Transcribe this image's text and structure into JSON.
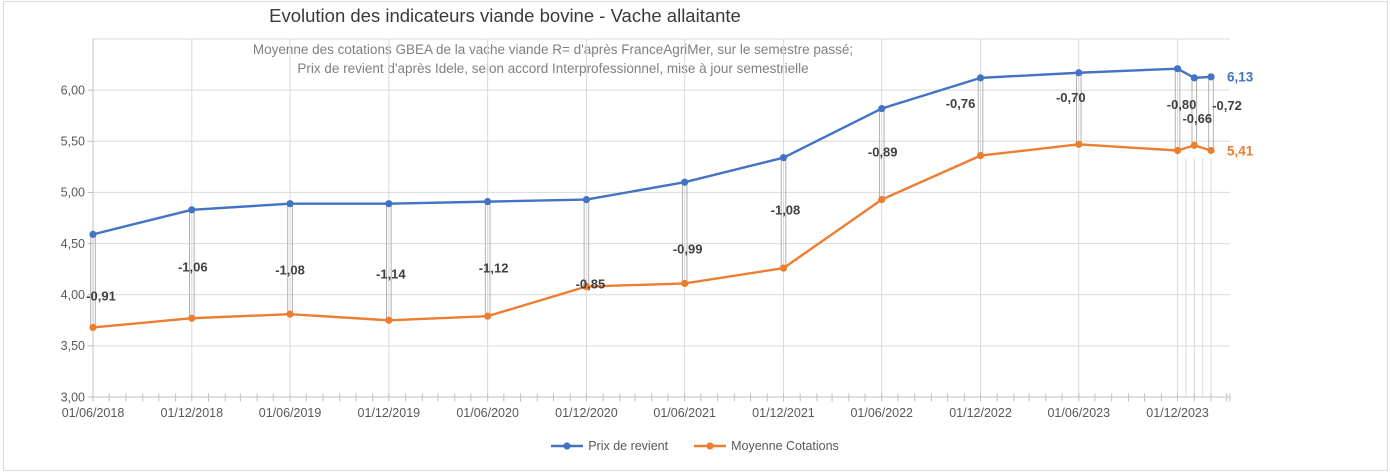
{
  "title": "Evolution des indicateurs viande bovine - Vache allaitante",
  "subtitle": {
    "line1": "Moyenne des cotations GBEA de la vache viande R= d'après FranceAgriMer, sur le semestre passé;",
    "line2": "Prix de revient d'après Idele, selon accord Interprofessionnel, mise à jour semestrielle"
  },
  "chart_data": {
    "type": "line",
    "x": [
      "01/06/2018",
      "01/12/2018",
      "01/06/2019",
      "01/12/2019",
      "01/06/2020",
      "01/12/2020",
      "01/06/2021",
      "01/12/2021",
      "01/06/2022",
      "01/12/2022",
      "01/06/2023",
      "01/12/2023",
      "01/01/2024",
      "01/02/2024"
    ],
    "series": [
      {
        "name": "Prix de revient",
        "color": "#4472C4",
        "values": [
          4.59,
          4.83,
          4.89,
          4.89,
          4.91,
          4.93,
          5.1,
          5.34,
          5.82,
          6.12,
          6.17,
          6.21,
          6.12,
          6.13
        ],
        "end_label": "6,13"
      },
      {
        "name": "Moyenne Cotations",
        "color": "#ED7D31",
        "values": [
          3.68,
          3.77,
          3.81,
          3.75,
          3.79,
          4.08,
          4.11,
          4.26,
          4.93,
          5.36,
          5.47,
          5.41,
          5.46,
          5.41
        ],
        "end_label": "5,41"
      }
    ],
    "gap_labels": [
      "-0,91",
      "-1,06",
      "-1,08",
      "-1,14",
      "-1,12",
      "-0,85",
      "-0,99",
      "-1,08",
      "-0,89",
      "-0,76",
      "-0,70",
      "-0,80",
      "-0,66",
      "-0,72"
    ],
    "x_tick_labels": [
      "01/06/2018",
      "01/12/2018",
      "01/06/2019",
      "01/12/2019",
      "01/06/2020",
      "01/12/2020",
      "01/06/2021",
      "01/12/2021",
      "01/06/2022",
      "01/12/2022",
      "01/06/2023",
      "01/12/2023"
    ],
    "y_tick_labels": [
      "3,00",
      "3,50",
      "4,00",
      "4,50",
      "5,00",
      "5,50",
      "6,00"
    ],
    "ylim": [
      3.0,
      6.5
    ],
    "grid": true,
    "legend_position": "bottom"
  },
  "colors": {
    "gridline": "#D9D9D9",
    "axis": "#C0C0C0",
    "tick_label": "#595959",
    "gap_label": "#404040"
  }
}
